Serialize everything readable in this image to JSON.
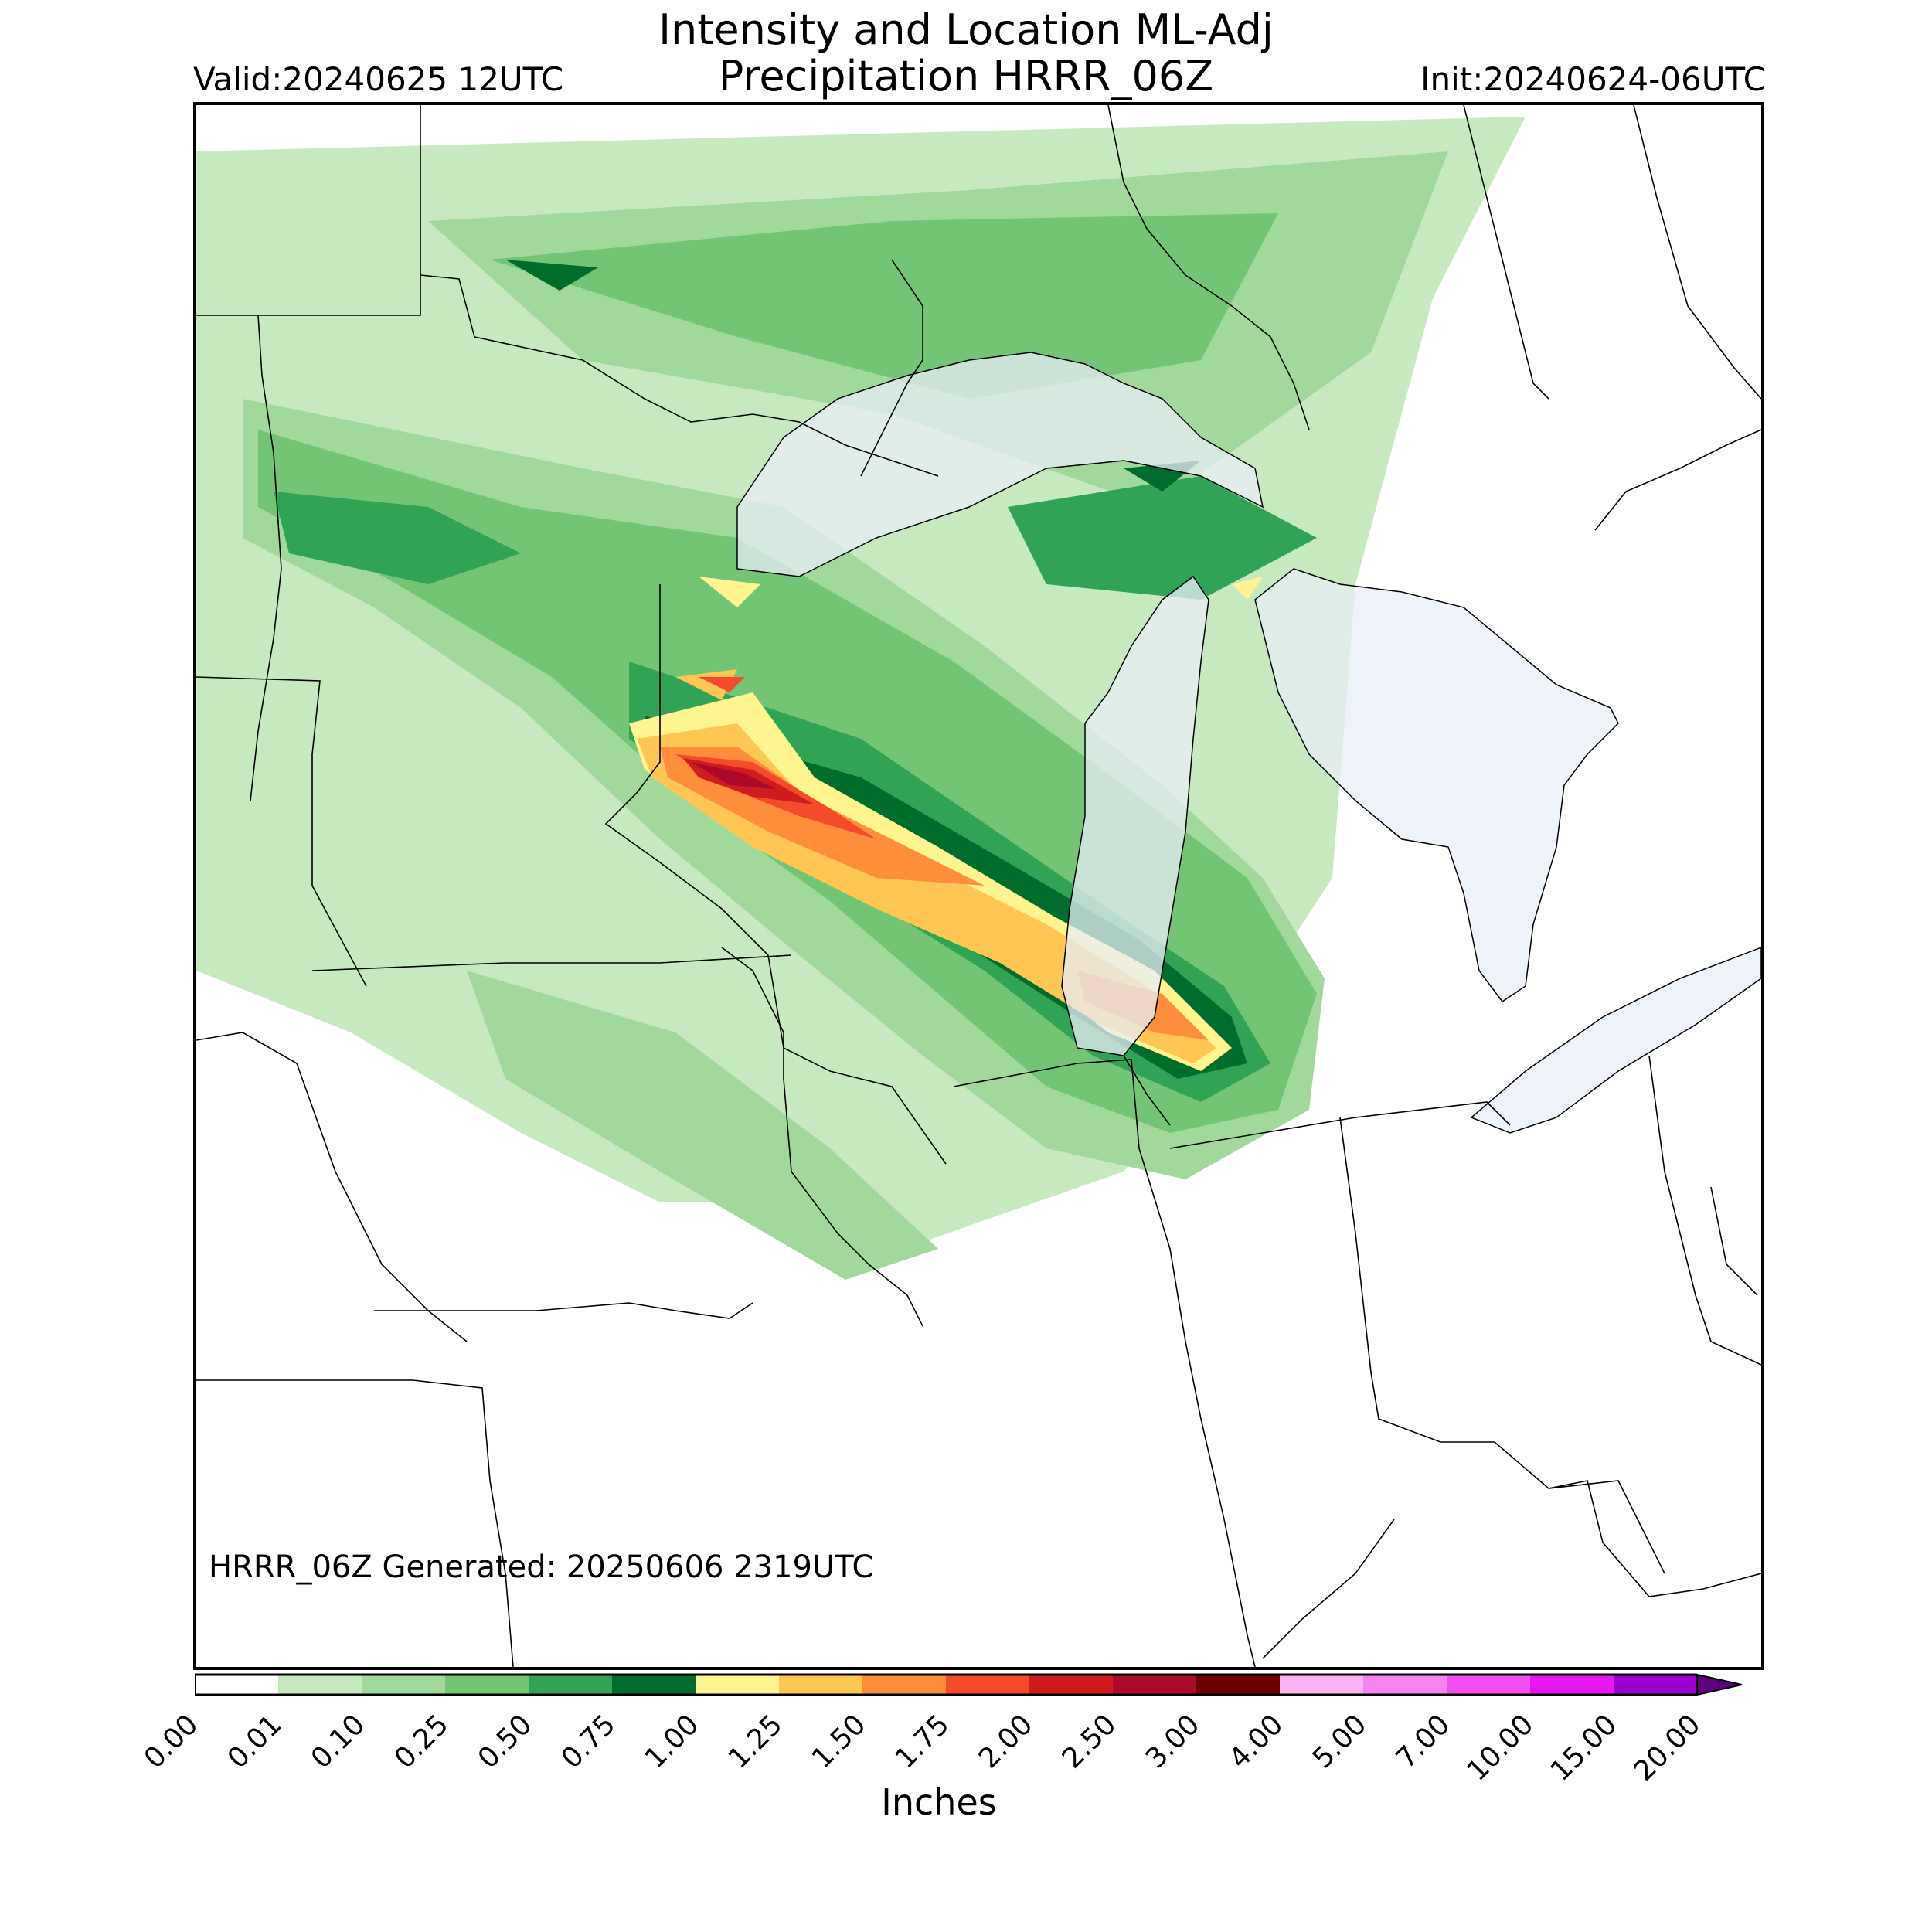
{
  "header": {
    "title_line1": "Intensity and Location ML-Adj",
    "title_line2": "Precipitation HRRR_06Z",
    "valid": "Valid:20240625 12UTC",
    "init": "Init:20240624-06UTC"
  },
  "map": {
    "generated_note": "HRRR_06Z Generated: 20250606 2319UTC",
    "water_color": "#e8eef7",
    "border_color": "#000000"
  },
  "colorbar": {
    "units": "Inches",
    "levels": [
      "0.00",
      "0.01",
      "0.10",
      "0.25",
      "0.50",
      "0.75",
      "1.00",
      "1.25",
      "1.50",
      "1.75",
      "2.00",
      "2.50",
      "3.00",
      "4.00",
      "5.00",
      "7.00",
      "10.00",
      "15.00",
      "20.00"
    ],
    "colors": [
      "#ffffff",
      "#c7e9c0",
      "#a1d99b",
      "#74c476",
      "#31a354",
      "#006d2c",
      "#fff48f",
      "#ffc653",
      "#fe8e3b",
      "#f44c2b",
      "#d01c21",
      "#ab0a2b",
      "#6d0000",
      "#fbb4f0",
      "#f783f0",
      "#f24ff0",
      "#e617f0",
      "#9900cc"
    ],
    "extend_color": "#5c0080"
  }
}
